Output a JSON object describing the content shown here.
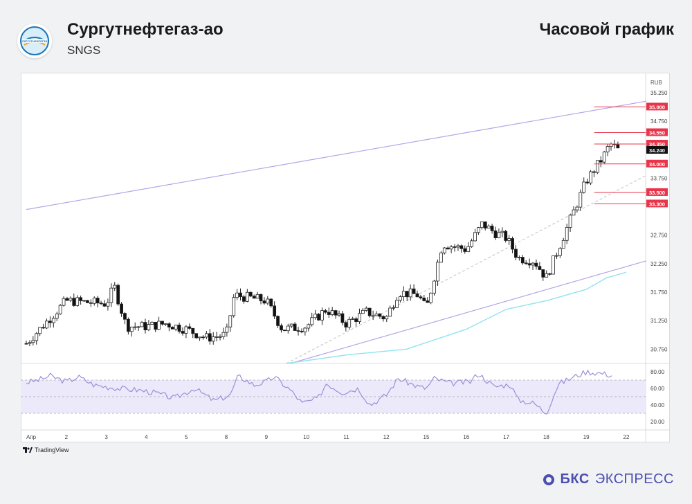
{
  "header": {
    "name": "Сургутнефтегаз-ао",
    "ticker": "SNGS",
    "timeframe": "Часовой график",
    "logo_text": "СУРГУТНЕФТЕГАЗ"
  },
  "footer": {
    "tv_label": "TradingView",
    "brand_bold": "БКС",
    "brand_light": "ЭКСПРЕСС"
  },
  "colors": {
    "up": "#ffffff",
    "down": "#111111",
    "channel": "#b3a6e6",
    "sma": "#8fe3ef",
    "level": "#e8354a",
    "rsi": "#9b8fd8",
    "rsi_band": "#ece9fb"
  },
  "chart_data": {
    "type": "candlestick",
    "currency": "RUB",
    "y_ticks": [
      "35.250",
      "34.750",
      "33.750",
      "32.750",
      "32.250",
      "31.750",
      "31.250",
      "30.750"
    ],
    "ylim": [
      30.5,
      35.6
    ],
    "x_ticks": [
      "Апр",
      "2",
      "3",
      "4",
      "5",
      "8",
      "9",
      "10",
      "11",
      "12",
      "15",
      "16",
      "17",
      "18",
      "19",
      "22"
    ],
    "last_price": "34.240",
    "levels": [
      {
        "label": "35.000",
        "value": 35.0
      },
      {
        "label": "34.550",
        "value": 34.55
      },
      {
        "label": "34.350",
        "value": 34.35
      },
      {
        "label": "34.000",
        "value": 34.0
      },
      {
        "label": "33.500",
        "value": 33.5
      },
      {
        "label": "33.300",
        "value": 33.3
      }
    ],
    "close_path": [
      [
        0,
        30.85
      ],
      [
        1,
        31.6
      ],
      [
        2,
        31.55
      ],
      [
        2.2,
        31.85
      ],
      [
        2.5,
        31.15
      ],
      [
        3,
        31.15
      ],
      [
        3.5,
        31.2
      ],
      [
        4,
        31.1
      ],
      [
        4.5,
        30.95
      ],
      [
        5,
        31.0
      ],
      [
        5.2,
        31.7
      ],
      [
        6,
        31.6
      ],
      [
        6.4,
        31.1
      ],
      [
        7,
        31.15
      ],
      [
        7.5,
        31.45
      ],
      [
        8,
        31.2
      ],
      [
        8.5,
        31.4
      ],
      [
        9,
        31.3
      ],
      [
        9.3,
        31.75
      ],
      [
        9.8,
        31.7
      ],
      [
        10,
        31.45
      ],
      [
        10.4,
        32.6
      ],
      [
        11,
        32.5
      ],
      [
        11.4,
        32.95
      ],
      [
        11.7,
        32.8
      ],
      [
        12,
        32.7
      ],
      [
        12.3,
        32.35
      ],
      [
        12.7,
        32.3
      ],
      [
        13,
        32.0
      ],
      [
        13.5,
        32.85
      ],
      [
        14,
        33.7
      ],
      [
        14.4,
        34.1
      ],
      [
        14.6,
        34.35
      ],
      [
        14.8,
        34.24
      ]
    ],
    "rsi": {
      "ticks": [
        "80.00",
        "60.00",
        "40.00",
        "20.00"
      ],
      "ylim": [
        10,
        90
      ],
      "band": [
        30,
        70
      ],
      "series": [
        [
          0,
          67
        ],
        [
          0.3,
          70
        ],
        [
          0.6,
          75
        ],
        [
          1,
          68
        ],
        [
          1.3,
          74
        ],
        [
          1.7,
          64
        ],
        [
          2.3,
          60
        ],
        [
          2.8,
          58
        ],
        [
          3.2,
          55
        ],
        [
          3.7,
          48
        ],
        [
          4.2,
          60
        ],
        [
          4.7,
          45
        ],
        [
          5.1,
          52
        ],
        [
          5.3,
          75
        ],
        [
          5.7,
          64
        ],
        [
          6,
          68
        ],
        [
          6.2,
          74
        ],
        [
          6.6,
          58
        ],
        [
          6.9,
          42
        ],
        [
          7.3,
          48
        ],
        [
          7.5,
          66
        ],
        [
          7.9,
          55
        ],
        [
          8.3,
          60
        ],
        [
          8.6,
          40
        ],
        [
          9,
          52
        ],
        [
          9.3,
          72
        ],
        [
          9.8,
          62
        ],
        [
          10,
          60
        ],
        [
          10.2,
          72
        ],
        [
          10.6,
          66
        ],
        [
          11.1,
          68
        ],
        [
          11.3,
          78
        ],
        [
          11.7,
          62
        ],
        [
          12.1,
          65
        ],
        [
          12.3,
          46
        ],
        [
          12.7,
          42
        ],
        [
          13,
          30
        ],
        [
          13.3,
          65
        ],
        [
          13.6,
          72
        ],
        [
          14,
          80
        ],
        [
          14.4,
          78
        ],
        [
          14.7,
          75
        ]
      ]
    }
  }
}
